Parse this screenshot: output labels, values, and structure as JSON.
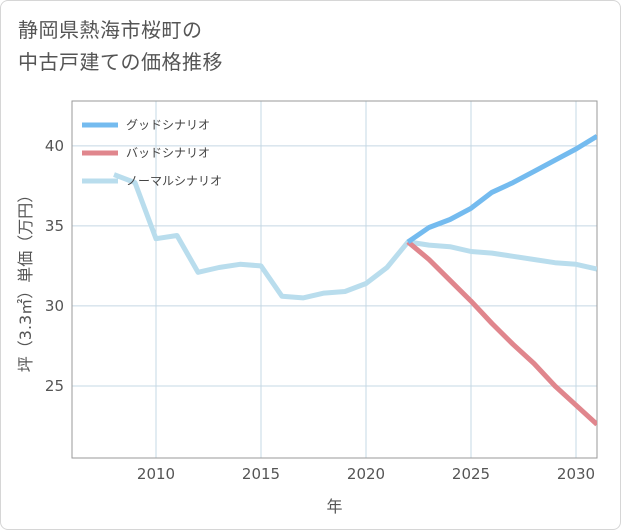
{
  "title": {
    "line1": "静岡県熱海市桜町の",
    "line2": "中古戸建ての価格推移"
  },
  "chart_data": {
    "type": "line",
    "title": "静岡県熱海市桜町の中古戸建ての価格推移",
    "xlabel": "年",
    "ylabel": "坪（3.3㎡）単価（万円）",
    "xlim": [
      2006,
      2031
    ],
    "ylim": [
      20.5,
      42.8
    ],
    "xticks": [
      2010,
      2015,
      2020,
      2025,
      2030
    ],
    "yticks": [
      25,
      30,
      35,
      40
    ],
    "grid": true,
    "legend_position": "top-left",
    "series": [
      {
        "name": "グッドシナリオ",
        "color": "#74bbef",
        "x": [
          2022,
          2023,
          2024,
          2025,
          2026,
          2027,
          2028,
          2029,
          2030,
          2031
        ],
        "y": [
          34.0,
          34.9,
          35.4,
          36.1,
          37.1,
          37.7,
          38.4,
          39.1,
          39.8,
          40.6
        ]
      },
      {
        "name": "バッドシナリオ",
        "color": "#e0868d",
        "x": [
          2022,
          2023,
          2024,
          2025,
          2026,
          2027,
          2028,
          2029,
          2030,
          2031
        ],
        "y": [
          34.0,
          32.9,
          31.6,
          30.3,
          28.9,
          27.6,
          26.4,
          25.0,
          23.8,
          22.6
        ]
      },
      {
        "name": "ノーマルシナリオ",
        "color": "#b9dded",
        "x": [
          2008,
          2009,
          2010,
          2011,
          2012,
          2013,
          2014,
          2015,
          2016,
          2017,
          2018,
          2019,
          2020,
          2021,
          2022,
          2023,
          2024,
          2025,
          2026,
          2027,
          2028,
          2029,
          2030,
          2031
        ],
        "y": [
          38.2,
          37.7,
          34.2,
          34.4,
          32.1,
          32.4,
          32.6,
          32.5,
          30.6,
          30.5,
          30.8,
          30.9,
          31.4,
          32.4,
          34.0,
          33.8,
          33.7,
          33.4,
          33.3,
          33.1,
          32.9,
          32.7,
          32.6,
          32.3
        ]
      }
    ]
  }
}
